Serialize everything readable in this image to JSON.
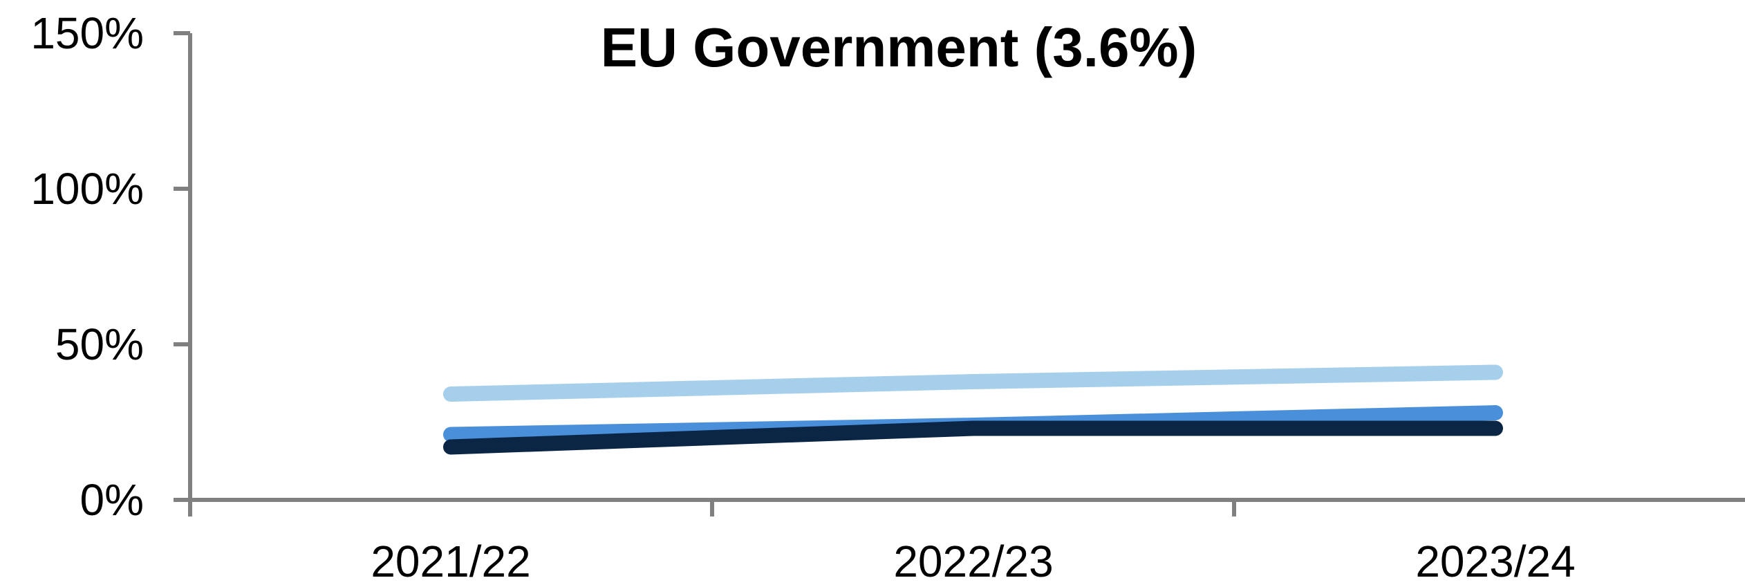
{
  "chart_data": {
    "type": "line",
    "title": "EU Government (3.6%)",
    "xlabel": "",
    "ylabel": "",
    "categories": [
      "2021/22",
      "2022/23",
      "2023/24"
    ],
    "y_ticks": [
      "0%",
      "50%",
      "100%",
      "150%"
    ],
    "y_tick_values": [
      0,
      50,
      100,
      150
    ],
    "ylim": [
      0,
      150
    ],
    "grid": false,
    "legend": "none",
    "series": [
      {
        "color": "#a6cfec",
        "values": [
          34,
          38,
          41
        ]
      },
      {
        "color": "#4a8fd9",
        "values": [
          21,
          24,
          28
        ]
      },
      {
        "color": "#0b2545",
        "values": [
          17,
          23,
          23
        ]
      }
    ],
    "colors": {
      "axis": "#808080",
      "text": "#000000",
      "background": "#ffffff"
    }
  }
}
